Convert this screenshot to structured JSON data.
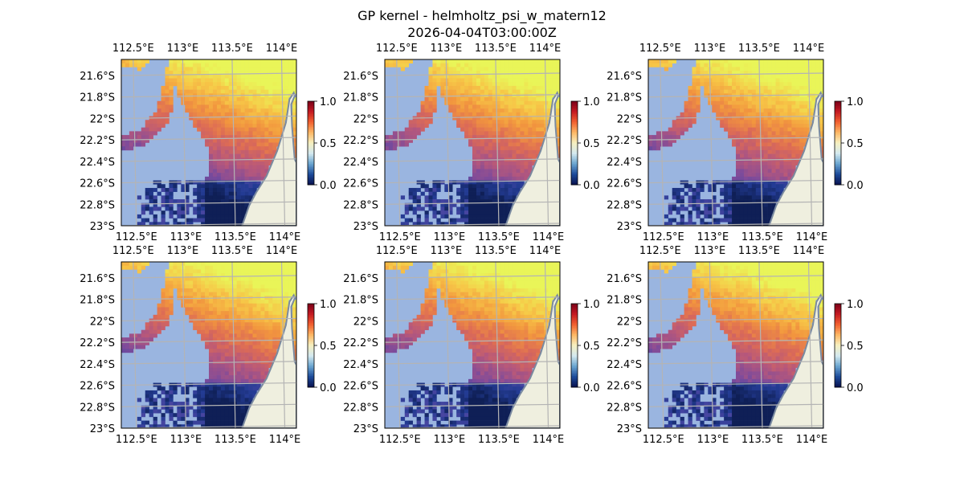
{
  "figure": {
    "title_line1": "GP kernel - helmholtz_psi_w_matern12",
    "title_line2": "2026-04-04T03:00:00Z"
  },
  "colors": {
    "ocean_bg": "#9ab5e0",
    "land": "#efefdf",
    "coast": "#7a8aa0",
    "grid": "#b4b4b4",
    "frame": "#000000",
    "field_stops": [
      "#0b1a4a",
      "#233b93",
      "#5048a4",
      "#7f4b9a",
      "#b5577c",
      "#dd6b55",
      "#f2963e",
      "#f7c747",
      "#e9f558"
    ],
    "colorbar_stops": [
      "#08104e",
      "#1d4b9a",
      "#6aa5d0",
      "#d4e9ef",
      "#f6f0c0",
      "#fdb765",
      "#f16030",
      "#c41a22",
      "#7a0019"
    ]
  },
  "chart_data": [
    {
      "type": "heatmap",
      "panel": "top-left",
      "x_tick_labels": [
        "112.5°E",
        "113°E",
        "113.5°E",
        "114°E"
      ],
      "x_tick_values": [
        112.5,
        113.0,
        113.5,
        114.0
      ],
      "y_tick_labels": [
        "21.6°S",
        "21.8°S",
        "22°S",
        "22.2°S",
        "22.4°S",
        "22.6°S",
        "22.8°S",
        "23°S"
      ],
      "y_tick_values": [
        -21.6,
        -21.8,
        -22.0,
        -22.2,
        -22.4,
        -22.6,
        -22.8,
        -23.0
      ],
      "xlim": [
        112.38,
        114.15
      ],
      "ylim": [
        -23.0,
        -21.45
      ],
      "colorbar": {
        "ticks": [
          "0.0",
          "0.5",
          "1.0"
        ],
        "range": [
          0,
          1
        ]
      },
      "grid": true
    },
    {
      "type": "heatmap",
      "panel": "top-middle",
      "x_tick_labels": [
        "112.5°E",
        "113°E",
        "113.5°E",
        "114°E"
      ],
      "x_tick_values": [
        112.5,
        113.0,
        113.5,
        114.0
      ],
      "y_tick_labels": [
        "21.6°S",
        "21.8°S",
        "22°S",
        "22.2°S",
        "22.4°S",
        "22.6°S",
        "22.8°S",
        "23°S"
      ],
      "y_tick_values": [
        -21.6,
        -21.8,
        -22.0,
        -22.2,
        -22.4,
        -22.6,
        -22.8,
        -23.0
      ],
      "xlim": [
        112.38,
        114.15
      ],
      "ylim": [
        -23.0,
        -21.45
      ],
      "colorbar": {
        "ticks": [
          "0.0",
          "0.5",
          "1.0"
        ],
        "range": [
          0,
          1
        ]
      },
      "grid": true
    },
    {
      "type": "heatmap",
      "panel": "top-right",
      "x_tick_labels": [
        "112.5°E",
        "113°E",
        "113.5°E",
        "114°E"
      ],
      "x_tick_values": [
        112.5,
        113.0,
        113.5,
        114.0
      ],
      "y_tick_labels": [
        "21.6°S",
        "21.8°S",
        "22°S",
        "22.2°S",
        "22.4°S",
        "22.6°S",
        "22.8°S",
        "23°S"
      ],
      "y_tick_values": [
        -21.6,
        -21.8,
        -22.0,
        -22.2,
        -22.4,
        -22.6,
        -22.8,
        -23.0
      ],
      "xlim": [
        112.38,
        114.15
      ],
      "ylim": [
        -23.0,
        -21.45
      ],
      "colorbar": {
        "ticks": [
          "0.0",
          "0.5",
          "1.0"
        ],
        "range": [
          0,
          1
        ]
      },
      "grid": true
    },
    {
      "type": "heatmap",
      "panel": "bottom-left",
      "x_tick_labels": [
        "112.5°E",
        "113°E",
        "113.5°E",
        "114°E"
      ],
      "x_tick_values": [
        112.5,
        113.0,
        113.5,
        114.0
      ],
      "y_tick_labels": [
        "21.6°S",
        "21.8°S",
        "22°S",
        "22.2°S",
        "22.4°S",
        "22.6°S",
        "22.8°S",
        "23°S"
      ],
      "y_tick_values": [
        -21.6,
        -21.8,
        -22.0,
        -22.2,
        -22.4,
        -22.6,
        -22.8,
        -23.0
      ],
      "xlim": [
        112.38,
        114.15
      ],
      "ylim": [
        -23.0,
        -21.45
      ],
      "colorbar": {
        "ticks": [
          "0.0",
          "0.5",
          "1.0"
        ],
        "range": [
          0,
          1
        ]
      },
      "grid": true
    },
    {
      "type": "heatmap",
      "panel": "bottom-middle",
      "x_tick_labels": [
        "112.5°E",
        "113°E",
        "113.5°E",
        "114°E"
      ],
      "x_tick_values": [
        112.5,
        113.0,
        113.5,
        114.0
      ],
      "y_tick_labels": [
        "21.6°S",
        "21.8°S",
        "22°S",
        "22.2°S",
        "22.4°S",
        "22.6°S",
        "22.8°S",
        "23°S"
      ],
      "y_tick_values": [
        -21.6,
        -21.8,
        -22.0,
        -22.2,
        -22.4,
        -22.6,
        -22.8,
        -23.0
      ],
      "xlim": [
        112.38,
        114.15
      ],
      "ylim": [
        -23.0,
        -21.45
      ],
      "colorbar": {
        "ticks": [
          "0.0",
          "0.5",
          "1.0"
        ],
        "range": [
          0,
          1
        ]
      },
      "grid": true
    },
    {
      "type": "heatmap",
      "panel": "bottom-right",
      "x_tick_labels": [
        "112.5°E",
        "113°E",
        "113.5°E",
        "114°E"
      ],
      "x_tick_values": [
        112.5,
        113.0,
        113.5,
        114.0
      ],
      "y_tick_labels": [
        "21.6°S",
        "21.8°S",
        "22°S",
        "22.2°S",
        "22.4°S",
        "22.6°S",
        "22.8°S",
        "23°S"
      ],
      "y_tick_values": [
        -21.6,
        -21.8,
        -22.0,
        -22.2,
        -22.4,
        -22.6,
        -22.8,
        -23.0
      ],
      "xlim": [
        112.38,
        114.15
      ],
      "ylim": [
        -23.0,
        -21.45
      ],
      "colorbar": {
        "ticks": [
          "0.0",
          "0.5",
          "1.0"
        ],
        "range": [
          0,
          1
        ]
      },
      "grid": true
    }
  ]
}
